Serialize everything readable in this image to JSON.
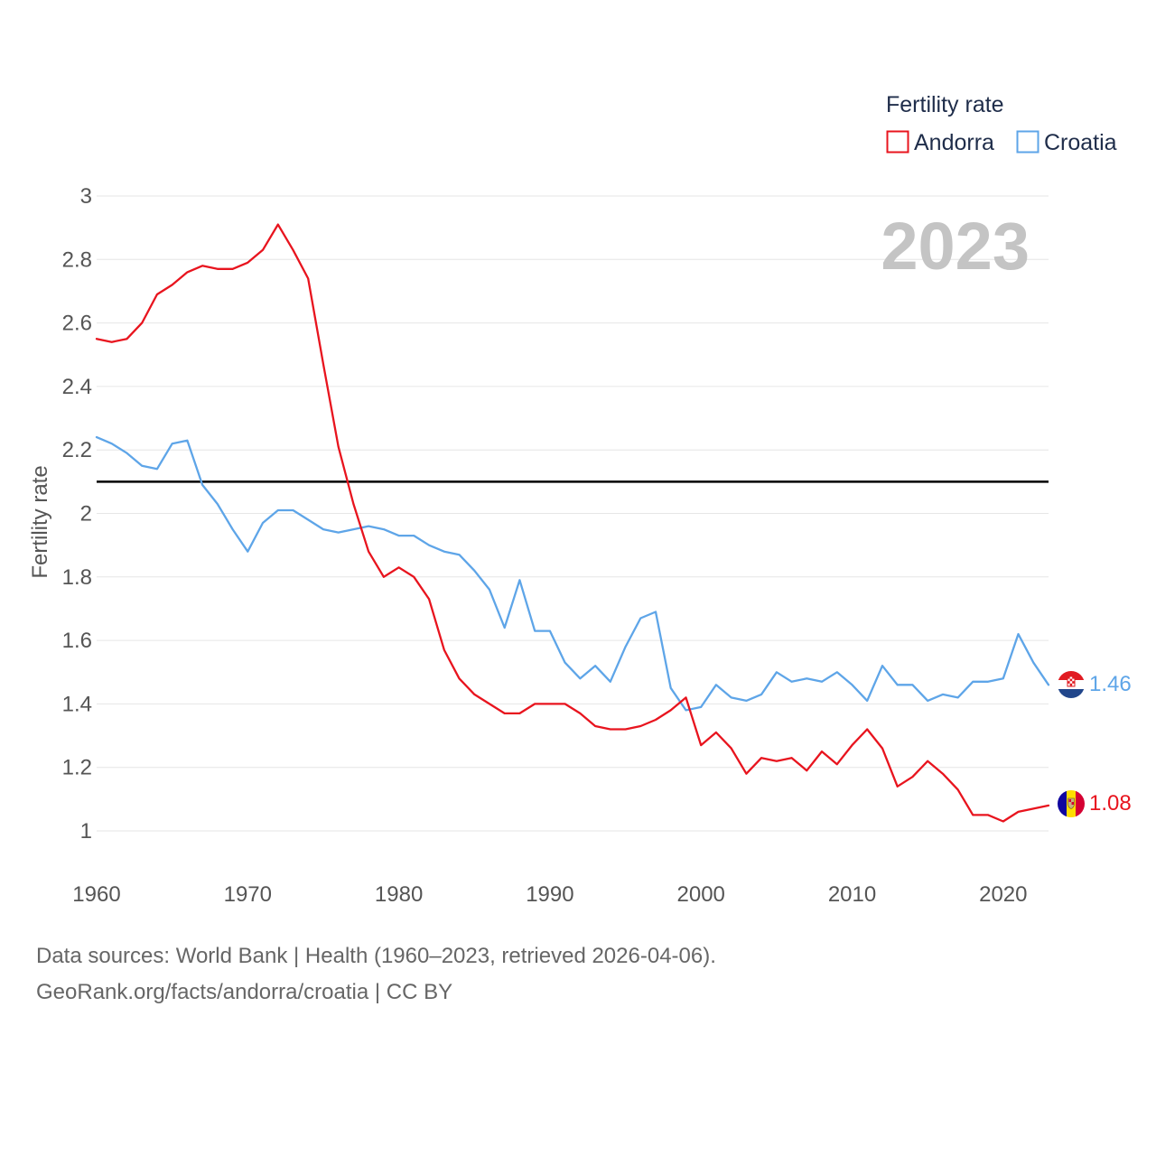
{
  "chart_data": {
    "type": "line",
    "title": "",
    "ylabel": "Fertility rate",
    "xlabel": "",
    "xlim": [
      1960,
      2023
    ],
    "ylim": [
      0.85,
      3.05
    ],
    "x_ticks": [
      1960,
      1970,
      1980,
      1990,
      2000,
      2010,
      2020
    ],
    "x_tick_labels": [
      "1960",
      "1970",
      "1980",
      "1990",
      "2000",
      "2010",
      "2020"
    ],
    "y_ticks": [
      1,
      1.2,
      1.4,
      1.6,
      1.8,
      2,
      2.2,
      2.4,
      2.6,
      2.8,
      3
    ],
    "y_tick_labels": [
      "1",
      "1.2",
      "1.4",
      "1.6",
      "1.8",
      "2",
      "2.2",
      "2.4",
      "2.6",
      "2.8",
      "3"
    ],
    "grid": true,
    "year_display": "2023",
    "reference_line": {
      "value": 2.1,
      "color": "#000000"
    },
    "legend": {
      "title": "Fertility rate",
      "position": "top-right"
    },
    "x": [
      1960,
      1961,
      1962,
      1963,
      1964,
      1965,
      1966,
      1967,
      1968,
      1969,
      1970,
      1971,
      1972,
      1973,
      1974,
      1975,
      1976,
      1977,
      1978,
      1979,
      1980,
      1981,
      1982,
      1983,
      1984,
      1985,
      1986,
      1987,
      1988,
      1989,
      1990,
      1991,
      1992,
      1993,
      1994,
      1995,
      1996,
      1997,
      1998,
      1999,
      2000,
      2001,
      2002,
      2003,
      2004,
      2005,
      2006,
      2007,
      2008,
      2009,
      2010,
      2011,
      2012,
      2013,
      2014,
      2015,
      2016,
      2017,
      2018,
      2019,
      2020,
      2021,
      2022,
      2023
    ],
    "series": [
      {
        "name": "Andorra",
        "color": "#e8141e",
        "end_label": "1.08",
        "flag": "andorra-flag-icon",
        "values": [
          2.55,
          2.54,
          2.55,
          2.6,
          2.69,
          2.72,
          2.76,
          2.78,
          2.77,
          2.77,
          2.79,
          2.83,
          2.91,
          2.83,
          2.74,
          2.47,
          2.21,
          2.03,
          1.88,
          1.8,
          1.83,
          1.8,
          1.73,
          1.57,
          1.48,
          1.43,
          1.4,
          1.37,
          1.37,
          1.4,
          1.4,
          1.4,
          1.37,
          1.33,
          1.32,
          1.32,
          1.33,
          1.35,
          1.38,
          1.42,
          1.27,
          1.31,
          1.26,
          1.18,
          1.23,
          1.22,
          1.23,
          1.19,
          1.25,
          1.21,
          1.27,
          1.32,
          1.26,
          1.14,
          1.17,
          1.22,
          1.18,
          1.13,
          1.05,
          1.05,
          1.03,
          1.06,
          1.07,
          1.08
        ]
      },
      {
        "name": "Croatia",
        "color": "#5ea5e8",
        "end_label": "1.46",
        "flag": "croatia-flag-icon",
        "values": [
          2.24,
          2.22,
          2.19,
          2.15,
          2.14,
          2.22,
          2.23,
          2.09,
          2.03,
          1.95,
          1.88,
          1.97,
          2.01,
          2.01,
          1.98,
          1.95,
          1.94,
          1.95,
          1.96,
          1.95,
          1.93,
          1.93,
          1.9,
          1.88,
          1.87,
          1.82,
          1.76,
          1.64,
          1.79,
          1.63,
          1.63,
          1.53,
          1.48,
          1.52,
          1.47,
          1.58,
          1.67,
          1.69,
          1.45,
          1.38,
          1.39,
          1.46,
          1.42,
          1.41,
          1.43,
          1.5,
          1.47,
          1.48,
          1.47,
          1.5,
          1.46,
          1.41,
          1.52,
          1.46,
          1.46,
          1.41,
          1.43,
          1.42,
          1.47,
          1.47,
          1.48,
          1.62,
          1.53,
          1.46
        ]
      }
    ]
  },
  "footer": {
    "sources": "Data sources: World Bank | Health (1960–2023, retrieved 2026-04-06).",
    "attribution": "GeoRank.org/facts/andorra/croatia | CC BY"
  }
}
